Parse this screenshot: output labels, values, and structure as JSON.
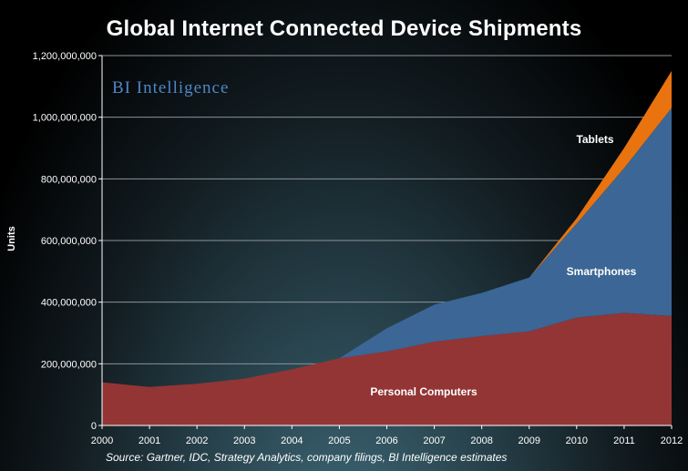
{
  "chart_data": {
    "type": "area",
    "stacked": true,
    "title": "Global Internet Connected Device Shipments",
    "xlabel": "",
    "ylabel": "Units",
    "source": "Source: Gartner, IDC, Strategy Analytics, company filings, BI Intelligence estimates",
    "watermark": "BI Intelligence",
    "x": [
      "2000",
      "2001",
      "2002",
      "2003",
      "2004",
      "2005",
      "2006",
      "2007",
      "2008",
      "2009",
      "2010",
      "2011",
      "2012"
    ],
    "ylim": [
      0,
      1200000000
    ],
    "y_ticks": [
      0,
      200000000,
      400000000,
      600000000,
      800000000,
      1000000000,
      1200000000
    ],
    "y_tick_labels": [
      "0",
      "200,000,000",
      "400,000,000",
      "600,000,000",
      "800,000,000",
      "1,000,000,000",
      "1,200,000,000"
    ],
    "grid": true,
    "series": [
      {
        "name": "Personal Computers",
        "color": "#933535",
        "values": [
          140000000,
          125000000,
          135000000,
          152000000,
          182000000,
          218000000,
          240000000,
          272000000,
          290000000,
          305000000,
          350000000,
          365000000,
          355000000
        ]
      },
      {
        "name": "Smartphones",
        "color": "#3b6696",
        "values": [
          0,
          0,
          0,
          0,
          0,
          0,
          75000000,
          120000000,
          140000000,
          175000000,
          305000000,
          470000000,
          675000000
        ]
      },
      {
        "name": "Tablets",
        "color": "#e8730f",
        "values": [
          0,
          0,
          0,
          0,
          0,
          0,
          0,
          0,
          0,
          0,
          17000000,
          65000000,
          120000000
        ]
      }
    ],
    "series_labels": [
      "Personal Computers",
      "Smartphones",
      "Tablets"
    ]
  }
}
